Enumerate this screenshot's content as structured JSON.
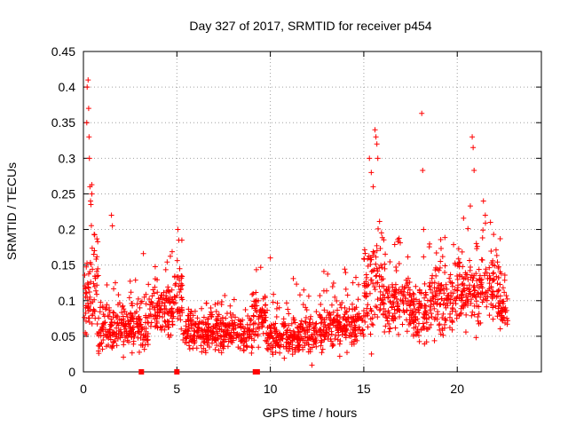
{
  "chart_data": {
    "type": "scatter",
    "title": "Day 327 of 2017, SRMTID for receiver p454",
    "xlabel": "GPS time / hours",
    "ylabel": "SRMTID / TECUs",
    "xlim": [
      0,
      24.5
    ],
    "ylim": [
      0,
      0.45
    ],
    "xticks": [
      0,
      5,
      10,
      15,
      20
    ],
    "yticks": [
      0,
      0.05,
      0.1,
      0.15,
      0.2,
      0.25,
      0.3,
      0.35,
      0.4,
      0.45
    ],
    "grid": true,
    "marker": "+",
    "color": "#ff0000",
    "segments": [
      {
        "x": [
          0.0,
          0.4
        ],
        "base": 0.1,
        "spread": 0.03
      },
      {
        "x": [
          0.4,
          0.8
        ],
        "base": 0.12,
        "spread": 0.06
      },
      {
        "x": [
          0.8,
          1.6
        ],
        "base": 0.06,
        "spread": 0.03
      },
      {
        "x": [
          1.6,
          2.6
        ],
        "base": 0.065,
        "spread": 0.025
      },
      {
        "x": [
          2.6,
          3.5
        ],
        "base": 0.065,
        "spread": 0.03
      },
      {
        "x": [
          3.5,
          4.8
        ],
        "base": 0.085,
        "spread": 0.03
      },
      {
        "x": [
          4.8,
          5.3
        ],
        "base": 0.1,
        "spread": 0.04
      },
      {
        "x": [
          5.3,
          7.0
        ],
        "base": 0.055,
        "spread": 0.02
      },
      {
        "x": [
          7.0,
          9.0
        ],
        "base": 0.055,
        "spread": 0.02
      },
      {
        "x": [
          9.0,
          9.8
        ],
        "base": 0.08,
        "spread": 0.03
      },
      {
        "x": [
          9.8,
          11.0
        ],
        "base": 0.05,
        "spread": 0.02
      },
      {
        "x": [
          11.0,
          13.0
        ],
        "base": 0.055,
        "spread": 0.025
      },
      {
        "x": [
          13.0,
          15.0
        ],
        "base": 0.065,
        "spread": 0.025
      },
      {
        "x": [
          15.0,
          16.0
        ],
        "base": 0.12,
        "spread": 0.05
      },
      {
        "x": [
          16.0,
          17.5
        ],
        "base": 0.095,
        "spread": 0.035
      },
      {
        "x": [
          17.5,
          18.5
        ],
        "base": 0.085,
        "spread": 0.035
      },
      {
        "x": [
          18.5,
          20.0
        ],
        "base": 0.1,
        "spread": 0.035
      },
      {
        "x": [
          20.0,
          21.5
        ],
        "base": 0.115,
        "spread": 0.04
      },
      {
        "x": [
          21.5,
          22.3
        ],
        "base": 0.12,
        "spread": 0.04
      },
      {
        "x": [
          22.3,
          22.7
        ],
        "base": 0.085,
        "spread": 0.02
      }
    ],
    "outliers": [
      {
        "x": 0.1,
        "y": 0.055
      },
      {
        "x": 0.12,
        "y": 0.09
      },
      {
        "x": 0.18,
        "y": 0.35
      },
      {
        "x": 0.2,
        "y": 0.4
      },
      {
        "x": 0.25,
        "y": 0.41
      },
      {
        "x": 0.28,
        "y": 0.37
      },
      {
        "x": 0.3,
        "y": 0.33
      },
      {
        "x": 0.32,
        "y": 0.3
      },
      {
        "x": 0.35,
        "y": 0.26
      },
      {
        "x": 0.38,
        "y": 0.24
      },
      {
        "x": 0.4,
        "y": 0.235
      },
      {
        "x": 0.45,
        "y": 0.25
      },
      {
        "x": 1.5,
        "y": 0.22
      },
      {
        "x": 1.55,
        "y": 0.205
      },
      {
        "x": 5.05,
        "y": 0.2
      },
      {
        "x": 5.1,
        "y": 0.185
      },
      {
        "x": 10.0,
        "y": 0.16
      },
      {
        "x": 15.3,
        "y": 0.3
      },
      {
        "x": 15.4,
        "y": 0.28
      },
      {
        "x": 15.5,
        "y": 0.26
      },
      {
        "x": 15.6,
        "y": 0.34
      },
      {
        "x": 15.65,
        "y": 0.33
      },
      {
        "x": 15.7,
        "y": 0.32
      },
      {
        "x": 15.75,
        "y": 0.3
      },
      {
        "x": 18.1,
        "y": 0.363
      },
      {
        "x": 18.15,
        "y": 0.283
      },
      {
        "x": 18.2,
        "y": 0.2
      },
      {
        "x": 20.8,
        "y": 0.33
      },
      {
        "x": 20.85,
        "y": 0.315
      },
      {
        "x": 20.9,
        "y": 0.283
      },
      {
        "x": 21.4,
        "y": 0.24
      },
      {
        "x": 21.5,
        "y": 0.22
      }
    ],
    "zero_markers": [
      {
        "x": 3.1,
        "y": 0
      },
      {
        "x": 5.0,
        "y": 0
      },
      {
        "x": 9.2,
        "y": 0
      },
      {
        "x": 9.3,
        "y": 0
      }
    ]
  }
}
